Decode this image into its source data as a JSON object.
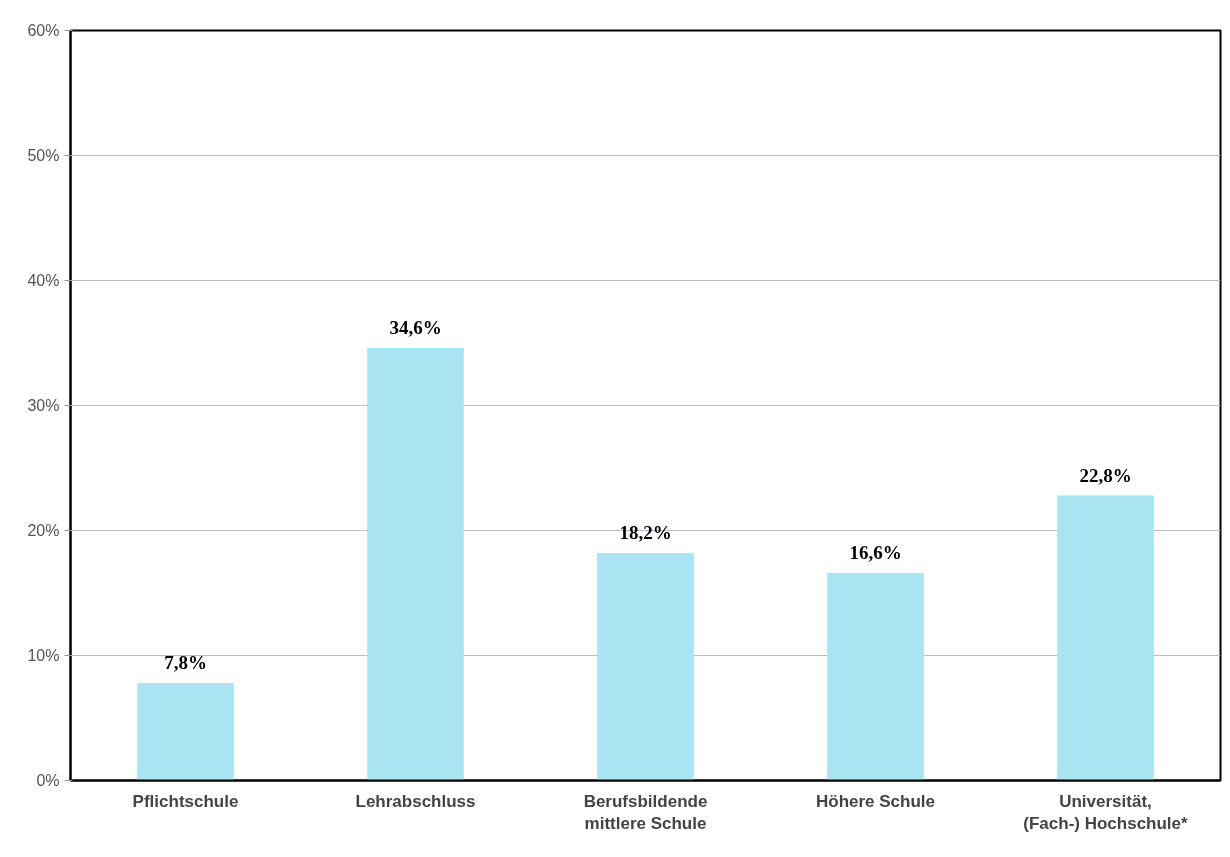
{
  "chart_data": {
    "type": "bar",
    "categories": [
      "Pflichtschule",
      "Lehrabschluss",
      "Berufsbildende mittlere Schule",
      "Höhere Schule",
      "Universität, (Fach-) Hochschule*"
    ],
    "values": [
      7.8,
      34.6,
      18.2,
      16.6,
      22.8
    ],
    "value_labels": [
      "7,8%",
      "34,6%",
      "18,2%",
      "16,6%",
      "22,8%"
    ],
    "color": "#a8e4f2",
    "ylim": [
      0,
      60
    ],
    "yticks": [
      {
        "value": 0,
        "label": "0%"
      },
      {
        "value": 10,
        "label": "10%"
      },
      {
        "value": 20,
        "label": "20%"
      },
      {
        "value": 30,
        "label": "30%"
      },
      {
        "value": 40,
        "label": "40%"
      },
      {
        "value": 50,
        "label": "50%"
      },
      {
        "value": 60,
        "label": "60%"
      }
    ],
    "grid": "y"
  }
}
